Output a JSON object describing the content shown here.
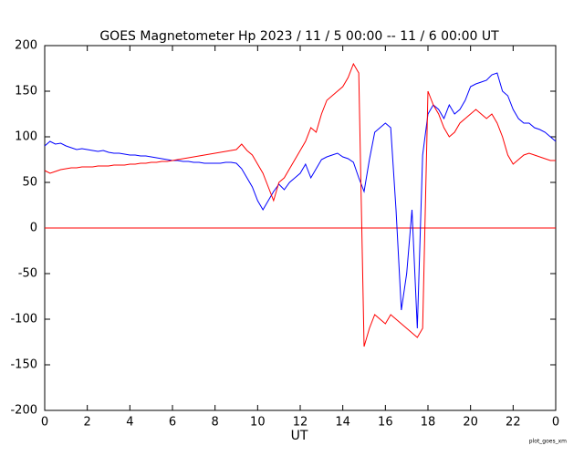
{
  "chart_data": {
    "type": "line",
    "title": "GOES Magnetometer Hp   2023 / 11 /  5  00:00 -- 11 /  6   00:00   UT",
    "x_label": "UT",
    "footer": "plot_goes_xm",
    "x": [
      0,
      0.25,
      0.5,
      0.75,
      1,
      1.25,
      1.5,
      1.75,
      2,
      2.25,
      2.5,
      2.75,
      3,
      3.25,
      3.5,
      3.75,
      4,
      4.25,
      4.5,
      4.75,
      5,
      5.25,
      5.5,
      5.75,
      6,
      6.25,
      6.5,
      6.75,
      7,
      7.25,
      7.5,
      7.75,
      8,
      8.25,
      8.5,
      8.75,
      9,
      9.25,
      9.5,
      9.75,
      10,
      10.25,
      10.5,
      10.75,
      11,
      11.25,
      11.5,
      11.75,
      12,
      12.25,
      12.5,
      12.75,
      13,
      13.25,
      13.5,
      13.75,
      14,
      14.25,
      14.5,
      14.75,
      15,
      15.25,
      15.5,
      15.75,
      16,
      16.25,
      16.5,
      16.75,
      17,
      17.25,
      17.5,
      17.75,
      18,
      18.25,
      18.5,
      18.75,
      19,
      19.25,
      19.5,
      19.75,
      20,
      20.25,
      20.5,
      20.75,
      21,
      21.25,
      21.5,
      21.75,
      22,
      22.25,
      22.5,
      22.75,
      23,
      23.25,
      23.5,
      23.75,
      24
    ],
    "series": [
      {
        "color": "#0000ff",
        "values": [
          90,
          95,
          92,
          93,
          90,
          88,
          86,
          87,
          86,
          85,
          84,
          85,
          83,
          82,
          82,
          81,
          80,
          80,
          79,
          79,
          78,
          77,
          76,
          75,
          74,
          74,
          73,
          73,
          72,
          72,
          71,
          71,
          71,
          71,
          72,
          72,
          71,
          65,
          55,
          45,
          30,
          20,
          30,
          40,
          48,
          42,
          50,
          55,
          60,
          70,
          55,
          65,
          75,
          78,
          80,
          82,
          78,
          76,
          72,
          55,
          40,
          75,
          105,
          110,
          115,
          110,
          20,
          -90,
          -50,
          20,
          -110,
          80,
          125,
          135,
          130,
          120,
          135,
          125,
          130,
          140,
          155,
          158,
          160,
          162,
          168,
          170,
          150,
          145,
          130,
          120,
          115,
          115,
          110,
          108,
          105,
          100,
          95
        ]
      },
      {
        "color": "#ff0000",
        "values": [
          63,
          60,
          62,
          64,
          65,
          66,
          66,
          67,
          67,
          67,
          68,
          68,
          68,
          69,
          69,
          69,
          70,
          70,
          71,
          71,
          72,
          72,
          73,
          73,
          74,
          75,
          76,
          77,
          78,
          79,
          80,
          81,
          82,
          83,
          84,
          85,
          86,
          92,
          85,
          80,
          70,
          60,
          45,
          30,
          50,
          55,
          65,
          75,
          85,
          95,
          110,
          105,
          125,
          140,
          145,
          150,
          155,
          165,
          180,
          170,
          -130,
          -110,
          -95,
          -100,
          -105,
          -95,
          -100,
          -105,
          -110,
          -115,
          -120,
          -110,
          150,
          135,
          125,
          110,
          100,
          105,
          115,
          120,
          125,
          130,
          125,
          120,
          125,
          115,
          100,
          80,
          70,
          75,
          80,
          82,
          80,
          78,
          76,
          74,
          74
        ]
      }
    ],
    "xlim": [
      0,
      24
    ],
    "xticks": [
      0,
      2,
      4,
      6,
      8,
      10,
      12,
      14,
      16,
      18,
      20,
      22,
      {
        "value": 24,
        "label": "0"
      }
    ],
    "ylim": [
      -200,
      200
    ],
    "yticks": [
      200,
      150,
      100,
      50,
      0,
      -50,
      -100,
      -150,
      -200
    ],
    "hlines": [
      {
        "value": 0,
        "color": "#ff0000"
      }
    ],
    "grid": false
  }
}
